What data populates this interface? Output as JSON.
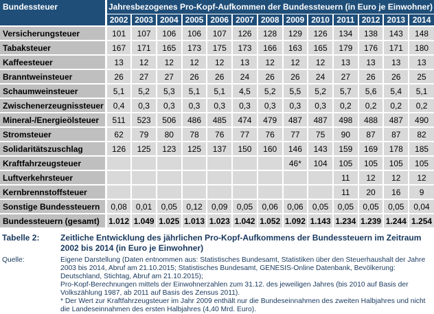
{
  "colors": {
    "header_blue": "#1F4E79",
    "row_label_gray": "#BFBFBF",
    "data_cell_gray": "#D9D9D9",
    "footer_text_navy": "#17375D"
  },
  "table": {
    "corner_label": "Bundessteuer",
    "main_header": "Jahresbezogenes Pro-Kopf-Aufkommen der Bundessteuern (in Euro je Einwohner)",
    "years": [
      "2002",
      "2003",
      "2004",
      "2005",
      "2006",
      "2007",
      "2008",
      "2009",
      "2010",
      "2011",
      "2012",
      "2013",
      "2014"
    ],
    "rows": [
      {
        "label": "Versicherungsteuer",
        "values": [
          "101",
          "107",
          "106",
          "106",
          "107",
          "126",
          "128",
          "129",
          "126",
          "134",
          "138",
          "143",
          "148"
        ],
        "bold": false
      },
      {
        "label": "Tabaksteuer",
        "values": [
          "167",
          "171",
          "165",
          "173",
          "175",
          "173",
          "166",
          "163",
          "165",
          "179",
          "176",
          "171",
          "180"
        ],
        "bold": false
      },
      {
        "label": "Kaffeesteuer",
        "values": [
          "13",
          "12",
          "12",
          "12",
          "12",
          "13",
          "12",
          "12",
          "12",
          "13",
          "13",
          "13",
          "13"
        ],
        "bold": false
      },
      {
        "label": "Branntweinsteuer",
        "values": [
          "26",
          "27",
          "27",
          "26",
          "26",
          "24",
          "26",
          "26",
          "24",
          "27",
          "26",
          "26",
          "25"
        ],
        "bold": false
      },
      {
        "label": "Schaumweinsteuer",
        "values": [
          "5,1",
          "5,2",
          "5,3",
          "5,1",
          "5,1",
          "4,5",
          "5,2",
          "5,5",
          "5,2",
          "5,7",
          "5,6",
          "5,4",
          "5,1"
        ],
        "bold": false
      },
      {
        "label": "Zwischenerzeugnissteuer",
        "values": [
          "0,4",
          "0,3",
          "0,3",
          "0,3",
          "0,3",
          "0,3",
          "0,3",
          "0,3",
          "0,3",
          "0,2",
          "0,2",
          "0,2",
          "0,2"
        ],
        "bold": false
      },
      {
        "label": "Mineral-/Energieölsteuer",
        "values": [
          "511",
          "523",
          "506",
          "486",
          "485",
          "474",
          "479",
          "487",
          "487",
          "498",
          "488",
          "487",
          "490"
        ],
        "bold": false
      },
      {
        "label": "Stromsteuer",
        "values": [
          "62",
          "79",
          "80",
          "78",
          "76",
          "77",
          "76",
          "77",
          "75",
          "90",
          "87",
          "87",
          "82"
        ],
        "bold": false
      },
      {
        "label": "Solidaritätszuschlag",
        "values": [
          "126",
          "125",
          "123",
          "125",
          "137",
          "150",
          "160",
          "146",
          "143",
          "159",
          "169",
          "178",
          "185"
        ],
        "bold": false
      },
      {
        "label": "Kraftfahrzeugsteuer",
        "values": [
          "",
          "",
          "",
          "",
          "",
          "",
          "",
          "46*",
          "104",
          "105",
          "105",
          "105",
          "105"
        ],
        "bold": false
      },
      {
        "label": "Luftverkehrsteuer",
        "values": [
          "",
          "",
          "",
          "",
          "",
          "",
          "",
          "",
          "",
          "11",
          "12",
          "12",
          "12"
        ],
        "bold": false
      },
      {
        "label": "Kernbrennstoffsteuer",
        "values": [
          "",
          "",
          "",
          "",
          "",
          "",
          "",
          "",
          "",
          "11",
          "20",
          "16",
          "9"
        ],
        "bold": false
      },
      {
        "label": "Sonstige Bundessteuern",
        "values": [
          "0,08",
          "0,01",
          "0,05",
          "0,12",
          "0,09",
          "0,05",
          "0,06",
          "0,06",
          "0,05",
          "0,05",
          "0,05",
          "0,05",
          "0,04"
        ],
        "bold": false
      },
      {
        "label": "Bundessteuern (gesamt)",
        "values": [
          "1.012",
          "1.049",
          "1.025",
          "1.013",
          "1.023",
          "1.042",
          "1.052",
          "1.092",
          "1.143",
          "1.234",
          "1.239",
          "1.244",
          "1.254"
        ],
        "bold": true
      }
    ]
  },
  "caption": {
    "label": "Tabelle 2:",
    "text": "Zeitliche Entwicklung des jährlichen Pro-Kopf-Aufkommens der Bundessteuern im Zeitraum 2002 bis 2014 (in Euro je Einwohner)"
  },
  "source": {
    "label": "Quelle:",
    "paragraphs": [
      "Eigene Darstellung (Daten entnommen aus: Statistisches Bundesamt, Statistiken über den Steuerhaushalt der Jahre 2003 bis 2014, Abruf am 21.10.2015; Statistisches Bundesamt, GENESIS-Online Datenbank, Bevölkerung: Deutschland, Stichtag, Abruf am 21.10.2015);",
      "Pro-Kopf-Berechnungen mittels der Einwohnerzahlen zum 31.12. des jeweiligen Jahres (bis 2010 auf Basis der Volkszählung 1987, ab 2011 auf Basis des Zensus 2011).",
      "* Der Wert zur Kraftfahrzeugsteuer im Jahr 2009 enthält nur die Bundeseinnahmen des zweiten Halbjahres und nicht die Landeseinnahmen des ersten Halbjahres (4,40 Mrd. Euro)."
    ]
  }
}
